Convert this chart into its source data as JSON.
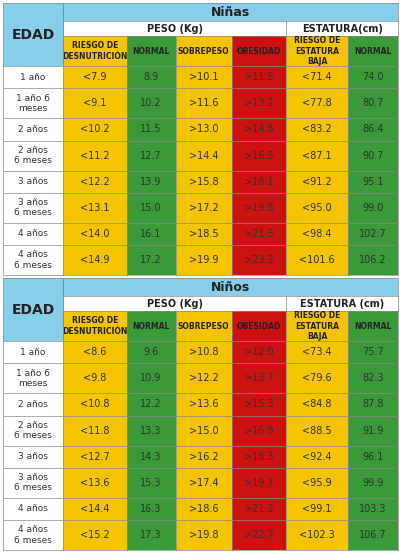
{
  "ninas_title": "Niñas",
  "ninos_title": "Niños",
  "edad_label": "EDAD",
  "peso_label": "PESO (Kg)",
  "estatura_label_ninas": "ESTATURA(cm)",
  "estatura_label_ninos": "ESTATURA (cm)",
  "col_headers": [
    "RIESGO DE\nDESNUTRICIÓN",
    "NORMAL",
    "SOBREPESO",
    "OBESIDAD",
    "RIESGO DE\nESTATURA\nBAJA",
    "NORMAL"
  ],
  "row_labels": [
    "1 año",
    "1 año 6\nmeses",
    "2 años",
    "2 años\n6 meses",
    "3 años",
    "3 años\n6 meses",
    "4 años",
    "4 años\n6 meses"
  ],
  "ninas_data": [
    [
      "<7.9",
      "8.9",
      ">10.1",
      ">11.5",
      "<71.4",
      "74.0"
    ],
    [
      "<9.1",
      "10.2",
      ">11.6",
      ">13.2",
      "<77.8",
      "80.7"
    ],
    [
      "<10.2",
      "11.5",
      ">13.0",
      ">14.8",
      "<83.2",
      "86.4"
    ],
    [
      "<11.2",
      "12.7",
      ">14.4",
      ">16.5",
      "<87.1",
      "90.7"
    ],
    [
      "<12.2",
      "13.9",
      ">15.8",
      ">18.1",
      "<91.2",
      "95.1"
    ],
    [
      "<13.1",
      "15.0",
      ">17.2",
      ">19.8",
      "<95.0",
      "99.0"
    ],
    [
      "<14.0",
      "16.1",
      ">18.5",
      ">21.5",
      "<98.4",
      "102.7"
    ],
    [
      "<14.9",
      "17.2",
      ">19.9",
      ">23.2",
      "<101.6",
      "106.2"
    ]
  ],
  "ninos_data": [
    [
      "<8.6",
      "9.6",
      ">10.8",
      ">12.0",
      "<73.4",
      "75.7"
    ],
    [
      "<9.8",
      "10.9",
      ">12.2",
      ">13.7",
      "<79.6",
      "82.3"
    ],
    [
      "<10.8",
      "12.2",
      ">13.6",
      ">15.3",
      "<84.8",
      "87.8"
    ],
    [
      "<11.8",
      "13.3",
      ">15.0",
      ">16.9",
      "<88.5",
      "91.9"
    ],
    [
      "<12.7",
      "14.3",
      ">16.2",
      ">18.3",
      "<92.4",
      "96.1"
    ],
    [
      "<13.6",
      "15.3",
      ">17.4",
      ">19.7",
      "<95.9",
      "99.9"
    ],
    [
      "<14.4",
      "16.3",
      ">18.6",
      ">21.2",
      "<99.1",
      "103.3"
    ],
    [
      "<15.2",
      "17.3",
      ">19.8",
      ">22.7",
      "<102.3",
      "106.7"
    ]
  ],
  "col_colors": [
    "#F5C400",
    "#3A9A3A",
    "#F5C400",
    "#CC1111",
    "#F5C400",
    "#3A9A3A"
  ],
  "header_bg": "#87CEEB",
  "title_bg": "#87CEEB",
  "border_color": "#888888",
  "edad_bg": "#87CEEB",
  "row_bg": "#FFFFFF",
  "subheader_bg": "#FFFFFF",
  "yellow": "#F5C400",
  "green": "#3A9A3A",
  "red": "#CC1111",
  "lightblue": "#87CEEB"
}
